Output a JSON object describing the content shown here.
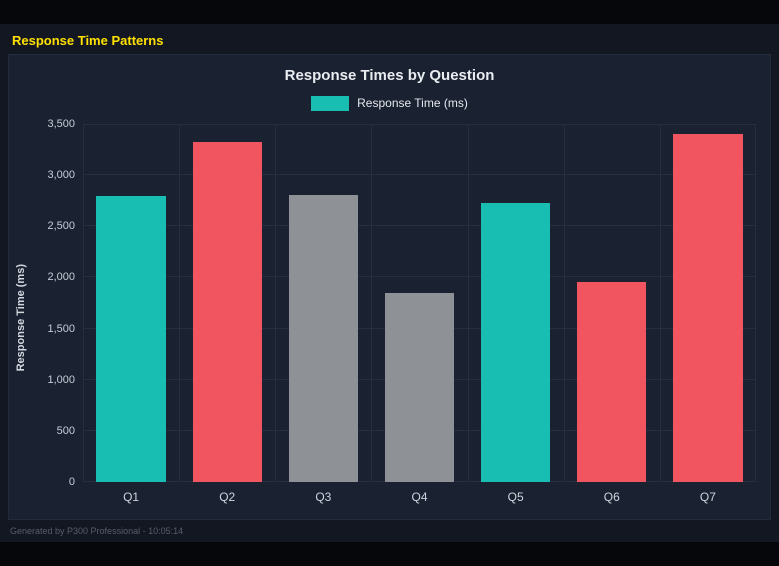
{
  "page": {
    "title": "Response Time Patterns",
    "footer": "Generated by P300 Professional - 10:05:14"
  },
  "chart_data": {
    "type": "bar",
    "title": "Response Times by Question",
    "legend": {
      "label": "Response Time (ms)",
      "color": "#17beb1",
      "position": "top"
    },
    "categories": [
      "Q1",
      "Q2",
      "Q3",
      "Q4",
      "Q5",
      "Q6",
      "Q7"
    ],
    "values": [
      2800,
      3320,
      2810,
      1850,
      2730,
      1960,
      3400
    ],
    "bar_colors": [
      "#17beb1",
      "#f1555f",
      "#8e9196",
      "#8e9196",
      "#17beb1",
      "#f1555f",
      "#f1555f"
    ],
    "xlabel": "",
    "ylabel": "Response Time (ms)",
    "ylim": [
      0,
      3500
    ],
    "ytick_step": 500,
    "yticks": [
      "0",
      "500",
      "1,000",
      "1,500",
      "2,000",
      "2,500",
      "3,000",
      "3,500"
    ],
    "grid": true,
    "colors": {
      "teal": "#17beb1",
      "red": "#f1555f",
      "gray": "#8e9196",
      "accent_title": "#ffe000"
    }
  }
}
